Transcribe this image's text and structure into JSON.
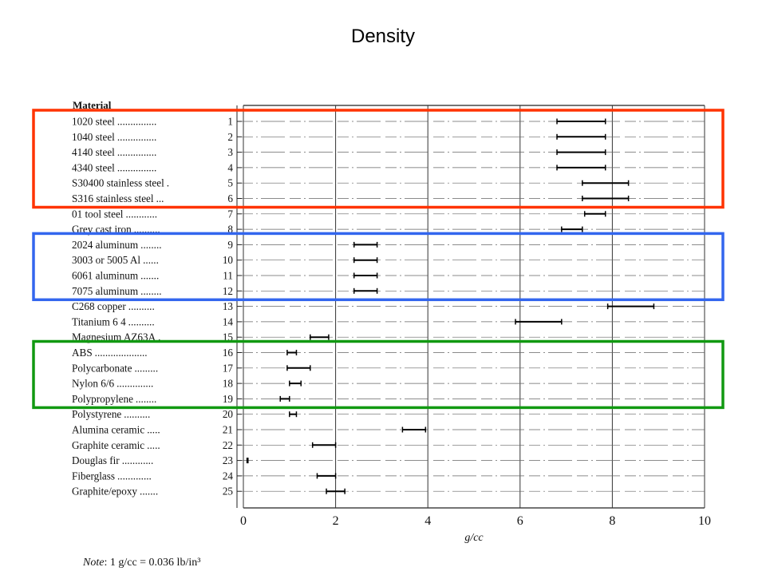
{
  "slide": {
    "title": "Density",
    "note_prefix": "Note",
    "note_text": ": 1 g/cc = 0.036 lb/in³"
  },
  "chart_data": {
    "type": "range",
    "table_header": "Material",
    "xlabel": "g/cc",
    "xlim": [
      0,
      10
    ],
    "xticks": [
      0,
      2,
      4,
      6,
      8,
      10
    ],
    "grid": "vertical at each tick",
    "materials": [
      {
        "n": 1,
        "dots": "...............",
        "name": "1020 steel",
        "min": 6.8,
        "max": 7.85
      },
      {
        "n": 2,
        "dots": "...............",
        "name": "1040 steel",
        "min": 6.8,
        "max": 7.85
      },
      {
        "n": 3,
        "dots": "...............",
        "name": "4140 steel",
        "min": 6.8,
        "max": 7.85
      },
      {
        "n": 4,
        "dots": "...............",
        "name": "4340 steel",
        "min": 6.8,
        "max": 7.85
      },
      {
        "n": 5,
        "dots": ".",
        "name": "S30400 stainless steel",
        "min": 7.35,
        "max": 8.35
      },
      {
        "n": 6,
        "dots": "...",
        "name": "S316 stainless steel",
        "min": 7.35,
        "max": 8.35
      },
      {
        "n": 7,
        "dots": "............",
        "name": "01 tool steel",
        "min": 7.4,
        "max": 7.85
      },
      {
        "n": 8,
        "dots": "..........",
        "name": "Grey cast iron",
        "min": 6.9,
        "max": 7.35
      },
      {
        "n": 9,
        "dots": "........",
        "name": "2024 aluminum",
        "min": 2.4,
        "max": 2.9
      },
      {
        "n": 10,
        "dots": "......",
        "name": "3003 or 5005 Al",
        "min": 2.4,
        "max": 2.9
      },
      {
        "n": 11,
        "dots": ".......",
        "name": "6061 aluminum",
        "min": 2.4,
        "max": 2.9
      },
      {
        "n": 12,
        "dots": "........",
        "name": "7075 aluminum",
        "min": 2.4,
        "max": 2.9
      },
      {
        "n": 13,
        "dots": "..........",
        "name": "C268 copper",
        "min": 7.9,
        "max": 8.9
      },
      {
        "n": 14,
        "dots": "..........",
        "name": "Titanium 6  4",
        "min": 5.9,
        "max": 6.9
      },
      {
        "n": 15,
        "dots": ".",
        "name": "Magnesium AZ63A",
        "min": 1.45,
        "max": 1.85
      },
      {
        "n": 16,
        "dots": "....................",
        "name": "ABS",
        "min": 0.95,
        "max": 1.15
      },
      {
        "n": 17,
        "dots": ".........",
        "name": "Polycarbonate",
        "min": 0.95,
        "max": 1.45
      },
      {
        "n": 18,
        "dots": "..............",
        "name": "Nylon 6/6",
        "min": 1.0,
        "max": 1.25
      },
      {
        "n": 19,
        "dots": "........",
        "name": "Polypropylene",
        "min": 0.8,
        "max": 1.0
      },
      {
        "n": 20,
        "dots": "..........",
        "name": "Polystyrene",
        "min": 1.0,
        "max": 1.15
      },
      {
        "n": 21,
        "dots": ".....",
        "name": "Alumina ceramic",
        "min": 3.45,
        "max": 3.95
      },
      {
        "n": 22,
        "dots": ".....",
        "name": "Graphite ceramic",
        "min": 1.5,
        "max": 2.0
      },
      {
        "n": 23,
        "dots": "............",
        "name": "Douglas fir",
        "min": 0.08,
        "max": 0.1
      },
      {
        "n": 24,
        "dots": ".............",
        "name": "Fiberglass",
        "min": 1.6,
        "max": 2.0
      },
      {
        "n": 25,
        "dots": ".......",
        "name": "Graphite/epoxy",
        "min": 1.8,
        "max": 2.2
      }
    ],
    "highlight_boxes": [
      {
        "color": "#ff3300",
        "first": 1,
        "last": 6
      },
      {
        "color": "#3366ee",
        "first": 9,
        "last": 12
      },
      {
        "color": "#119911",
        "first": 16,
        "last": 19
      }
    ]
  }
}
